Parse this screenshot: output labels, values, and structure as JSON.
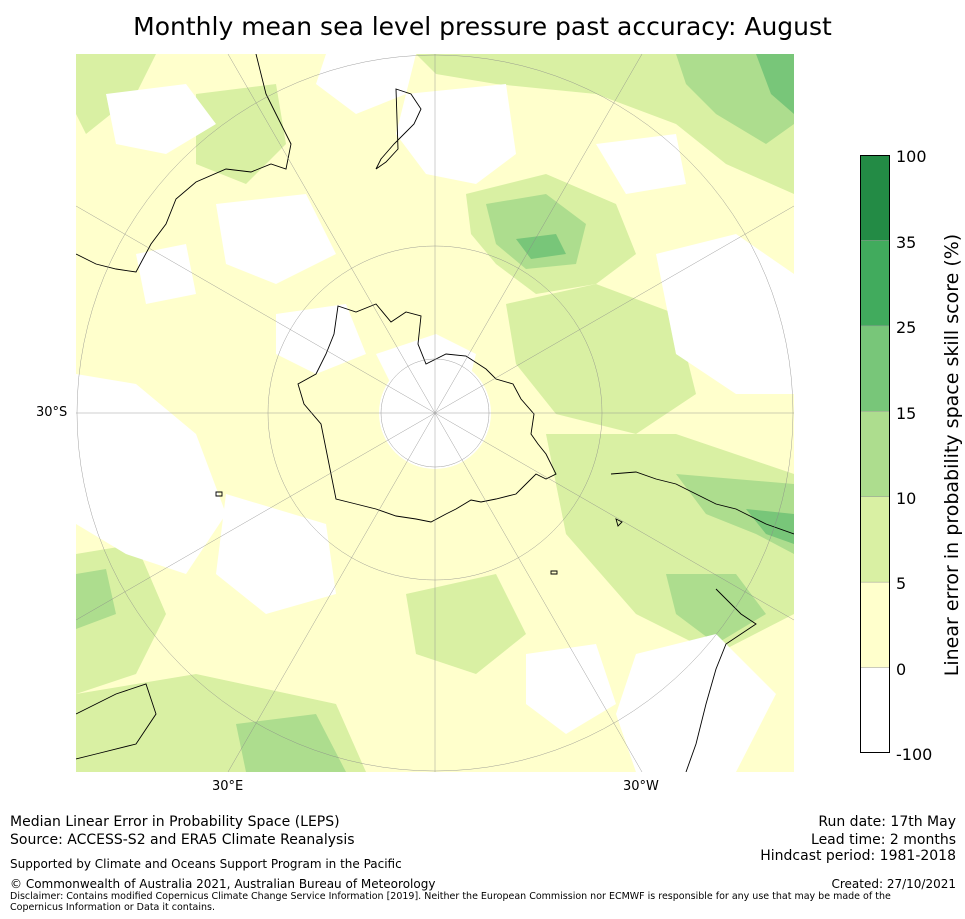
{
  "title": "Monthly mean sea level pressure past accuracy: August",
  "map": {
    "projection": "south-polar-stereographic",
    "lat_label": "30°S",
    "lon_labels": [
      "30°E",
      "30°W"
    ],
    "colorbar": {
      "label": "Linear error in probability space skill score (%)",
      "ticks": [
        "100",
        "35",
        "25",
        "15",
        "10",
        "5",
        "0",
        "-100"
      ],
      "colors": [
        "#238b45",
        "#41ab5d",
        "#78c679",
        "#addd8e",
        "#d9f0a3",
        "#ffffcc",
        "#ffffff"
      ]
    }
  },
  "footer": {
    "line1": "Median Linear Error in Probability Space (LEPS)",
    "line2": "Source: ACCESS-S2 and ERA5 Climate Reanalysis",
    "supported": "Supported by Climate and Oceans Support Program in the Pacific",
    "copyright": "© Commonwealth of Australia 2021, Australian Bureau of Meteorology",
    "disclaimer": "Disclaimer: Contains modified Copernicus Climate Change Service Information [2019]. Neither the European Commission nor ECMWF is responsible for any use that may be made of the Copernicus Information or Data it contains.",
    "run_date": "Run date: 17th May",
    "lead_time": "Lead time: 2 months",
    "hindcast": "Hindcast period: 1981-2018",
    "created": "Created: 27/10/2021"
  }
}
